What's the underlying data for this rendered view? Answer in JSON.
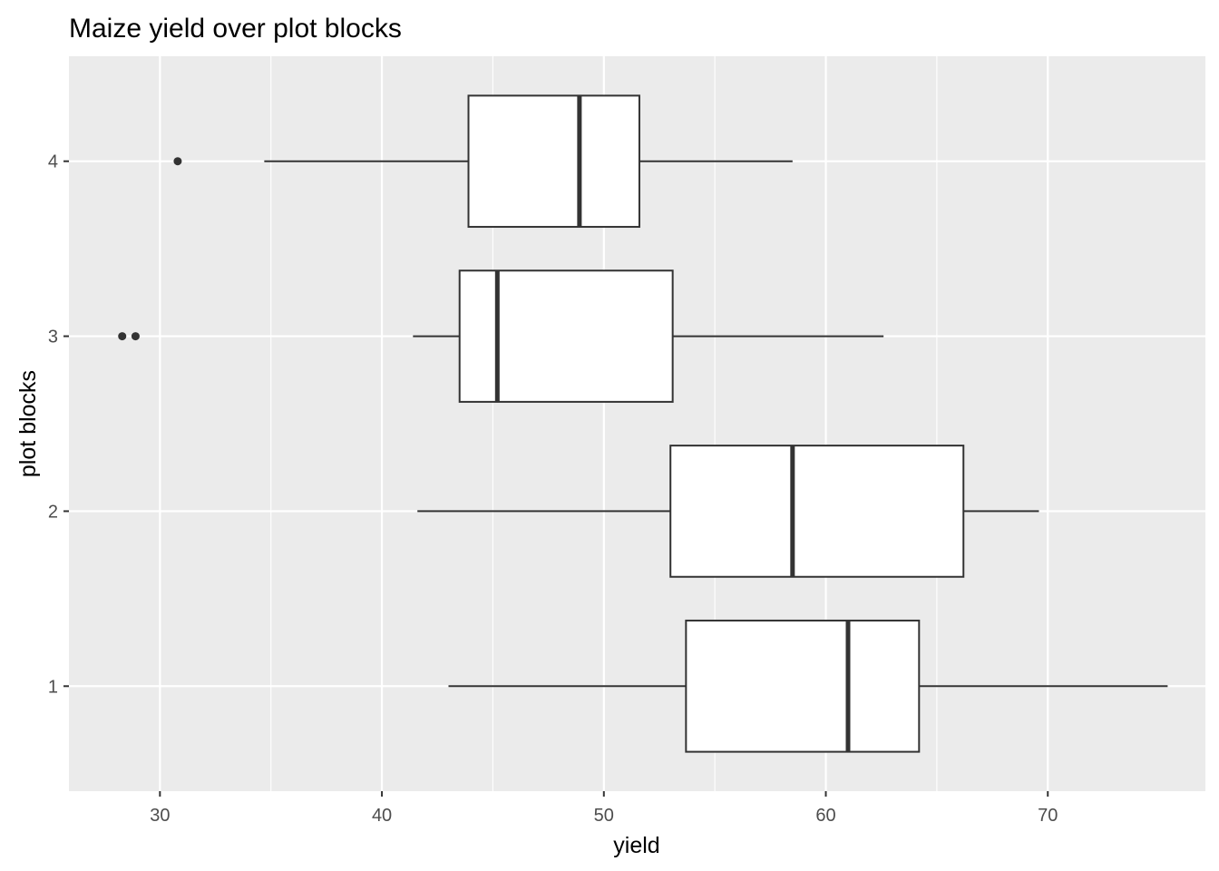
{
  "chart_data": {
    "type": "boxplot",
    "orientation": "horizontal",
    "title": "Maize yield over plot blocks",
    "xlabel": "yield",
    "ylabel": "plot blocks",
    "xlim": [
      25.9,
      77.1
    ],
    "x_ticks": [
      30,
      40,
      50,
      60,
      70
    ],
    "categories": [
      "1",
      "2",
      "3",
      "4"
    ],
    "series": [
      {
        "category": "1",
        "whisker_low": 43.0,
        "q1": 53.7,
        "median": 61.0,
        "q3": 64.2,
        "whisker_high": 75.4,
        "outliers": []
      },
      {
        "category": "2",
        "whisker_low": 41.6,
        "q1": 53.0,
        "median": 58.5,
        "q3": 66.2,
        "whisker_high": 69.6,
        "outliers": []
      },
      {
        "category": "3",
        "whisker_low": 41.4,
        "q1": 43.5,
        "median": 45.2,
        "q3": 53.1,
        "whisker_high": 62.6,
        "outliers": [
          28.3,
          28.9
        ]
      },
      {
        "category": "4",
        "whisker_low": 34.7,
        "q1": 43.9,
        "median": 48.9,
        "q3": 51.6,
        "whisker_high": 58.5,
        "outliers": [
          30.8
        ]
      }
    ],
    "grid": true,
    "legend": "none",
    "colors": {
      "panel_background": "#ebebeb",
      "grid": "#ffffff",
      "box_fill": "#ffffff",
      "box_stroke": "#333333",
      "tick_label": "#4d4d4d",
      "tick_mark": "#333333"
    }
  }
}
